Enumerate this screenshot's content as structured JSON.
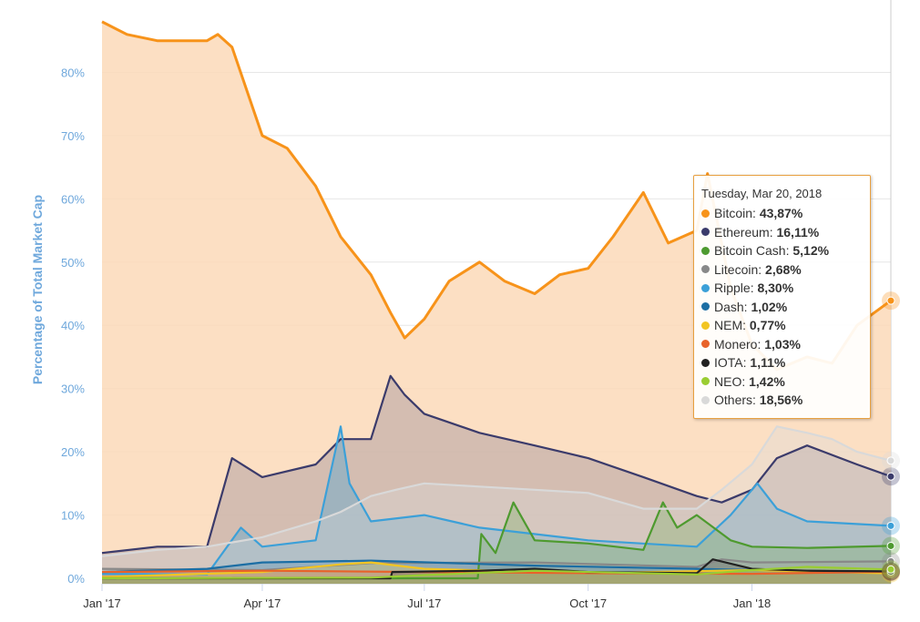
{
  "chart_data": {
    "type": "area",
    "ylabel": "Percentage of Total Market Cap",
    "xlabel": "",
    "ylim": [
      0,
      90
    ],
    "x_ticks": [
      "Jan '17",
      "Apr '17",
      "Jul '17",
      "Oct '17",
      "Jan '18"
    ],
    "y_ticks": [
      "0%",
      "10%",
      "20%",
      "30%",
      "40%",
      "50%",
      "60%",
      "70%",
      "80%"
    ],
    "grid": "horizontal",
    "series": [
      {
        "name": "Others",
        "color": "#d9d9d9",
        "x": [
          "2017-01-01",
          "2017-02-01",
          "2017-03-01",
          "2017-04-01",
          "2017-05-01",
          "2017-05-15",
          "2017-06-01",
          "2017-06-15",
          "2017-07-01",
          "2017-08-01",
          "2017-09-01",
          "2017-10-01",
          "2017-11-01",
          "2017-12-01",
          "2017-12-15",
          "2018-01-01",
          "2018-01-15",
          "2018-02-01",
          "2018-02-15",
          "2018-03-01",
          "2018-03-20"
        ],
        "values": [
          3.5,
          4.5,
          5,
          6.5,
          9,
          10.5,
          13,
          14,
          15,
          14.5,
          14,
          13.5,
          11,
          11,
          14,
          18,
          24,
          23,
          22,
          20,
          18.6
        ]
      },
      {
        "name": "NEO",
        "color": "#9acd32",
        "x": [
          "2017-01-01",
          "2017-06-01",
          "2017-07-01",
          "2017-09-01",
          "2017-12-01",
          "2018-01-01",
          "2018-02-01",
          "2018-03-20"
        ],
        "values": [
          0,
          0.1,
          0.5,
          1.2,
          0.6,
          1.3,
          1.8,
          1.4
        ]
      },
      {
        "name": "IOTA",
        "color": "#222222",
        "x": [
          "2017-01-01",
          "2017-06-12",
          "2017-06-13",
          "2017-08-01",
          "2017-09-01",
          "2017-10-01",
          "2017-12-01",
          "2017-12-10",
          "2018-01-01",
          "2018-02-01",
          "2018-03-20"
        ],
        "values": [
          0,
          0,
          1,
          1.2,
          1.5,
          1,
          0.8,
          3,
          1.5,
          1.2,
          1.1
        ]
      },
      {
        "name": "Monero",
        "color": "#e8622a",
        "x": [
          "2017-01-01",
          "2017-04-01",
          "2017-07-01",
          "2017-10-01",
          "2018-01-01",
          "2018-03-20"
        ],
        "values": [
          1,
          1.2,
          1,
          0.8,
          0.7,
          1.03
        ]
      },
      {
        "name": "NEM",
        "color": "#f2c523",
        "x": [
          "2017-01-01",
          "2017-04-01",
          "2017-05-15",
          "2017-06-01",
          "2017-07-01",
          "2017-10-01",
          "2018-01-01",
          "2018-03-20"
        ],
        "values": [
          0.2,
          1,
          2.2,
          2.5,
          1.5,
          0.8,
          1.3,
          0.77
        ]
      },
      {
        "name": "Dash",
        "color": "#1c6ea4",
        "x": [
          "2017-01-01",
          "2017-03-01",
          "2017-04-01",
          "2017-06-01",
          "2017-09-01",
          "2017-12-01",
          "2018-01-01",
          "2018-03-20"
        ],
        "values": [
          1,
          1.5,
          2.5,
          2.8,
          2,
          1.5,
          1.3,
          1.02
        ]
      },
      {
        "name": "Litecoin",
        "color": "#888888",
        "x": [
          "2017-01-01",
          "2017-04-01",
          "2017-06-01",
          "2017-09-01",
          "2017-12-01",
          "2017-12-15",
          "2018-01-01",
          "2018-03-20"
        ],
        "values": [
          1.5,
          1.3,
          2.4,
          2.5,
          1.8,
          3,
          2.5,
          2.68
        ]
      },
      {
        "name": "Bitcoin Cash",
        "color": "#4e9a2f",
        "x": [
          "2017-01-01",
          "2017-07-31",
          "2017-08-02",
          "2017-08-10",
          "2017-08-20",
          "2017-09-01",
          "2017-10-01",
          "2017-11-01",
          "2017-11-12",
          "2017-11-20",
          "2017-12-01",
          "2017-12-20",
          "2018-01-01",
          "2018-02-01",
          "2018-03-20"
        ],
        "values": [
          0,
          0,
          7,
          4,
          12,
          6,
          5.5,
          4.5,
          12,
          8,
          10,
          6,
          5,
          4.8,
          5.12
        ]
      },
      {
        "name": "Ripple",
        "color": "#3ca0d8",
        "x": [
          "2017-01-01",
          "2017-03-01",
          "2017-03-20",
          "2017-04-01",
          "2017-05-01",
          "2017-05-15",
          "2017-05-20",
          "2017-06-01",
          "2017-07-01",
          "2017-08-01",
          "2017-10-01",
          "2017-12-01",
          "2017-12-20",
          "2018-01-04",
          "2018-01-15",
          "2018-02-01",
          "2018-03-20"
        ],
        "values": [
          0.7,
          0.6,
          8,
          5,
          6,
          24,
          15,
          9,
          10,
          8,
          6,
          5,
          10,
          15,
          11,
          9,
          8.3
        ]
      },
      {
        "name": "Ethereum",
        "color": "#3b3b6b",
        "x": [
          "2017-01-01",
          "2017-02-01",
          "2017-03-01",
          "2017-03-15",
          "2017-04-01",
          "2017-05-01",
          "2017-05-15",
          "2017-06-01",
          "2017-06-12",
          "2017-06-20",
          "2017-07-01",
          "2017-08-01",
          "2017-09-01",
          "2017-10-01",
          "2017-11-01",
          "2017-12-01",
          "2017-12-15",
          "2018-01-01",
          "2018-01-15",
          "2018-02-01",
          "2018-03-01",
          "2018-03-20"
        ],
        "values": [
          4,
          5,
          5,
          19,
          16,
          18,
          22,
          22,
          32,
          29,
          26,
          23,
          21,
          19,
          16,
          13,
          12,
          14,
          19,
          21,
          18,
          16.1
        ]
      },
      {
        "name": "Bitcoin",
        "color": "#f7931a",
        "x": [
          "2017-01-01",
          "2017-01-15",
          "2017-02-01",
          "2017-02-15",
          "2017-03-01",
          "2017-03-07",
          "2017-03-15",
          "2017-04-01",
          "2017-04-15",
          "2017-05-01",
          "2017-05-15",
          "2017-06-01",
          "2017-06-12",
          "2017-06-20",
          "2017-07-01",
          "2017-07-15",
          "2017-08-01",
          "2017-08-15",
          "2017-09-01",
          "2017-09-15",
          "2017-10-01",
          "2017-10-15",
          "2017-11-01",
          "2017-11-15",
          "2017-12-01",
          "2017-12-07",
          "2017-12-20",
          "2018-01-01",
          "2018-01-15",
          "2018-02-01",
          "2018-02-15",
          "2018-03-01",
          "2018-03-20"
        ],
        "values": [
          88,
          86,
          85,
          85,
          85,
          86,
          84,
          70,
          68,
          62,
          54,
          48,
          42,
          38,
          41,
          47,
          50,
          47,
          45,
          48,
          49,
          54,
          61,
          53,
          55,
          64,
          46,
          37,
          33,
          35,
          34,
          40,
          43.9
        ]
      }
    ],
    "tooltip": {
      "date": "Tuesday, Mar 20, 2018",
      "items": [
        {
          "name": "Bitcoin",
          "value": "43,87%",
          "color": "#f7931a"
        },
        {
          "name": "Ethereum",
          "value": "16,11%",
          "color": "#3b3b6b"
        },
        {
          "name": "Bitcoin Cash",
          "value": "5,12%",
          "color": "#4e9a2f"
        },
        {
          "name": "Litecoin",
          "value": "2,68%",
          "color": "#888888"
        },
        {
          "name": "Ripple",
          "value": "8,30%",
          "color": "#3ca0d8"
        },
        {
          "name": "Dash",
          "value": "1,02%",
          "color": "#1c6ea4"
        },
        {
          "name": "NEM",
          "value": "0,77%",
          "color": "#f2c523"
        },
        {
          "name": "Monero",
          "value": "1,03%",
          "color": "#e8622a"
        },
        {
          "name": "IOTA",
          "value": "1,11%",
          "color": "#222222"
        },
        {
          "name": "NEO",
          "value": "1,42%",
          "color": "#9acd32"
        },
        {
          "name": "Others",
          "value": "18,56%",
          "color": "#d9d9d9"
        }
      ]
    }
  }
}
